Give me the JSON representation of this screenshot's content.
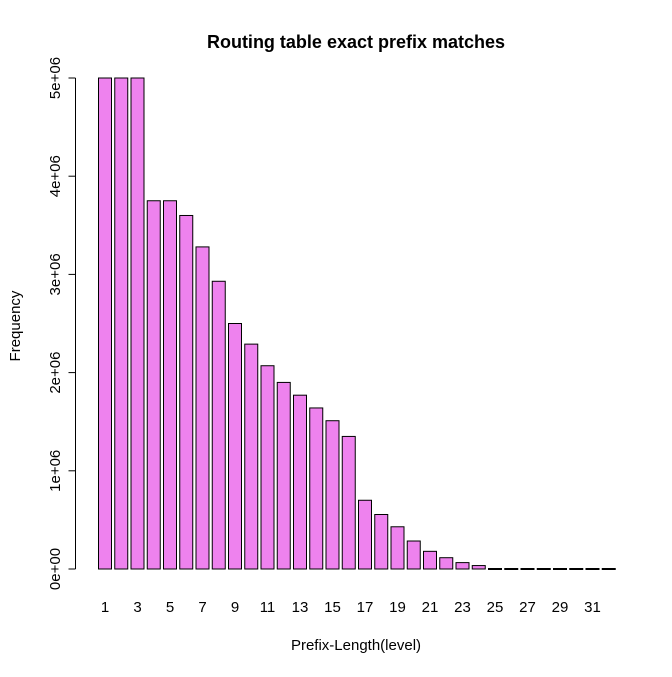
{
  "chart_data": {
    "type": "bar",
    "title": "Routing table exact prefix matches",
    "xlabel": "Prefix-Length(level)",
    "ylabel": "Frequency",
    "categories": [
      "1",
      "2",
      "3",
      "4",
      "5",
      "6",
      "7",
      "8",
      "9",
      "10",
      "11",
      "12",
      "13",
      "14",
      "15",
      "16",
      "17",
      "18",
      "19",
      "20",
      "21",
      "22",
      "23",
      "24",
      "25",
      "26",
      "27",
      "28",
      "29",
      "30",
      "31",
      "32"
    ],
    "x_tick_labels": [
      "1",
      "3",
      "5",
      "7",
      "9",
      "11",
      "13",
      "15",
      "17",
      "19",
      "21",
      "23",
      "25",
      "27",
      "29",
      "31"
    ],
    "values": [
      5000000,
      5000000,
      5000000,
      3750000,
      3750000,
      3600000,
      3280000,
      2930000,
      2500000,
      2290000,
      2070000,
      1900000,
      1770000,
      1640000,
      1510000,
      1350000,
      700000,
      555000,
      430000,
      285000,
      180000,
      115000,
      65000,
      35000,
      0,
      0,
      0,
      0,
      0,
      0,
      0,
      0
    ],
    "y_ticks": [
      0,
      1000000,
      2000000,
      3000000,
      4000000,
      5000000
    ],
    "y_tick_labels": [
      "0e+00",
      "1e+06",
      "2e+06",
      "3e+06",
      "4e+06",
      "5e+06"
    ],
    "ylim": [
      0,
      5000000
    ],
    "grid": false,
    "bar_color": "#EE82EE",
    "bar_border_color": "#000000"
  }
}
